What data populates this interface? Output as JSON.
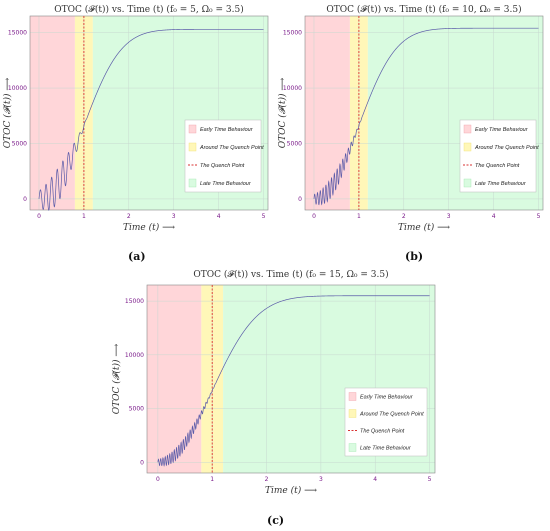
{
  "chart_data": [
    {
      "type": "line",
      "title": "OTOC (𝓕(t)) vs. Time (t) (f₀ = 5, Ω₀ = 3.5)",
      "xlabel": "Time (t) ⟶",
      "ylabel": "OTOC (𝓕(t)) ⟶",
      "xlim": [
        -0.2,
        5.1
      ],
      "ylim": [
        -1000,
        16500
      ],
      "xticks": [
        0,
        1,
        2,
        3,
        4,
        5
      ],
      "yticks": [
        0,
        5000,
        10000,
        15000
      ],
      "regions": {
        "early": [
          -0.2,
          0.8
        ],
        "quench": [
          0.8,
          1.2
        ],
        "late": [
          1.2,
          5.1
        ]
      },
      "quench_point": 1.0,
      "osc_freq": 5,
      "saturation": 15300,
      "legend": [
        "Early Time Behaviour",
        "Around The Quench Point",
        "The Quench Point",
        "Late Time Behaviour"
      ],
      "caption": "(a)"
    },
    {
      "type": "line",
      "title": "OTOC (𝓕(t)) vs. Time (t) (f₀ = 10, Ω₀ = 3.5)",
      "xlabel": "Time (t) ⟶",
      "ylabel": "OTOC (𝓕(t)) ⟶",
      "xlim": [
        -0.2,
        5.1
      ],
      "ylim": [
        -1000,
        16500
      ],
      "xticks": [
        0,
        1,
        2,
        3,
        4,
        5
      ],
      "yticks": [
        0,
        5000,
        10000,
        15000
      ],
      "regions": {
        "early": [
          -0.2,
          0.8
        ],
        "quench": [
          0.8,
          1.2
        ],
        "late": [
          1.2,
          5.1
        ]
      },
      "quench_point": 1.0,
      "osc_freq": 10,
      "saturation": 15400,
      "legend": [
        "Early Time Behaviour",
        "Around The Quench Point",
        "The Quench Point",
        "Late Time Behaviour"
      ],
      "caption": "(b)"
    },
    {
      "type": "line",
      "title": "OTOC (𝓕(t)) vs. Time (t) (f₀ = 15, Ω₀ = 3.5)",
      "xlabel": "Time (t) ⟶",
      "ylabel": "OTOC (𝓕(t)) ⟶",
      "xlim": [
        -0.2,
        5.1
      ],
      "ylim": [
        -1000,
        16500
      ],
      "xticks": [
        0,
        1,
        2,
        3,
        4,
        5
      ],
      "yticks": [
        0,
        5000,
        10000,
        15000
      ],
      "regions": {
        "early": [
          -0.2,
          0.8
        ],
        "quench": [
          0.8,
          1.2
        ],
        "late": [
          1.2,
          5.1
        ]
      },
      "quench_point": 1.0,
      "osc_freq": 15,
      "saturation": 15500,
      "legend": [
        "Early Time Behaviour",
        "Around The Quench Point",
        "The Quench Point",
        "Late Time Behaviour"
      ],
      "caption": "(c)"
    }
  ],
  "colors": {
    "early": "#ffd6d9",
    "quench": "#fff7b8",
    "late": "#d9fbe0",
    "curve": "#5a5aa8",
    "quench_line": "#d83030",
    "tick": "#7a1a8a"
  }
}
